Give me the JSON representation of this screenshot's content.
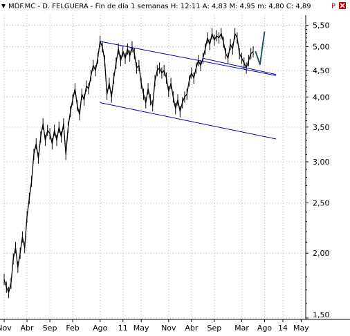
{
  "header": {
    "text": "MDF.MC - D. FELGUERA - Fin de día 1 semanas  H: 12:11  A: 4,83  M: 4,95  m: 4,80  C: 4,89",
    "marker_p": "P",
    "colors": {
      "marker": "#cc0000",
      "close_box": "#cc0000"
    }
  },
  "chart_data": {
    "type": "line",
    "title": "MDF.MC - D. FELGUERA - Fin de día 1 semanas",
    "scale": "log",
    "ylim": [
      1.5,
      5.75
    ],
    "yticks": [
      {
        "label": "5,50",
        "value": 5.5
      },
      {
        "label": "5,00",
        "value": 5.0
      },
      {
        "label": "4,50",
        "value": 4.5
      },
      {
        "label": "4,00",
        "value": 4.0
      },
      {
        "label": "3,50",
        "value": 3.5
      },
      {
        "label": "3,00",
        "value": 3.0
      },
      {
        "label": "2,50",
        "value": 2.5
      },
      {
        "label": "2,00",
        "value": 2.0
      },
      {
        "label": "1,50",
        "value": 1.5
      }
    ],
    "xticks": [
      {
        "label": "Nov",
        "t": 0
      },
      {
        "label": "Abr",
        "t": 5
      },
      {
        "label": "Sep",
        "t": 10
      },
      {
        "label": "Feb",
        "t": 15
      },
      {
        "label": "Ago",
        "t": 21
      },
      {
        "label": "11",
        "t": 26
      },
      {
        "label": "May",
        "t": 30
      },
      {
        "label": "Nov",
        "t": 36
      },
      {
        "label": "Abr",
        "t": 41
      },
      {
        "label": "Sep",
        "t": 46
      },
      {
        "label": "Mar",
        "t": 52
      },
      {
        "label": "Ago",
        "t": 57
      },
      {
        "label": "14",
        "t": 61
      },
      {
        "label": "May",
        "t": 65
      }
    ],
    "xlim": [
      0,
      66
    ],
    "grid": true,
    "series": [
      {
        "color": "#000000",
        "points": [
          [
            0,
            1.78
          ],
          [
            0.5,
            1.72
          ],
          [
            1,
            1.68
          ],
          [
            1.5,
            1.75
          ],
          [
            2,
            1.95
          ],
          [
            2.5,
            2.05
          ],
          [
            3,
            1.88
          ],
          [
            3.5,
            2.0
          ],
          [
            4,
            2.15
          ],
          [
            4.5,
            2.05
          ],
          [
            5,
            2.35
          ],
          [
            5.5,
            2.55
          ],
          [
            6,
            2.75
          ],
          [
            6.5,
            3.1
          ],
          [
            7,
            3.25
          ],
          [
            7.5,
            3.05
          ],
          [
            8,
            3.35
          ],
          [
            8.5,
            3.55
          ],
          [
            9,
            3.3
          ],
          [
            9.5,
            3.45
          ],
          [
            10,
            3.4
          ],
          [
            10.5,
            3.25
          ],
          [
            11,
            3.45
          ],
          [
            11.5,
            3.3
          ],
          [
            12,
            3.5
          ],
          [
            12.5,
            3.35
          ],
          [
            13,
            3.55
          ],
          [
            13.5,
            3.1
          ],
          [
            14,
            3.5
          ],
          [
            14.5,
            3.75
          ],
          [
            15,
            3.95
          ],
          [
            15.5,
            4.15
          ],
          [
            16,
            3.85
          ],
          [
            16.5,
            3.7
          ],
          [
            17,
            4.05
          ],
          [
            17.5,
            3.95
          ],
          [
            18,
            4.2
          ],
          [
            18.5,
            4.15
          ],
          [
            19,
            4.4
          ],
          [
            19.5,
            4.6
          ],
          [
            20,
            4.5
          ],
          [
            20.5,
            4.75
          ],
          [
            21,
            5.12
          ],
          [
            21.5,
            5.0
          ],
          [
            22,
            4.7
          ],
          [
            22.5,
            4.05
          ],
          [
            23,
            4.25
          ],
          [
            23.5,
            4.0
          ],
          [
            24,
            4.35
          ],
          [
            24.5,
            4.65
          ],
          [
            25,
            4.95
          ],
          [
            25.5,
            4.7
          ],
          [
            26,
            4.9
          ],
          [
            26.5,
            4.75
          ],
          [
            27,
            4.95
          ],
          [
            27.5,
            4.8
          ],
          [
            28,
            5.0
          ],
          [
            28.5,
            4.85
          ],
          [
            29,
            4.55
          ],
          [
            29.5,
            4.6
          ],
          [
            30,
            4.25
          ],
          [
            30.5,
            4.05
          ],
          [
            31,
            3.9
          ],
          [
            31.5,
            4.15
          ],
          [
            32,
            3.95
          ],
          [
            32.5,
            3.85
          ],
          [
            33,
            4.3
          ],
          [
            33.5,
            4.5
          ],
          [
            34,
            4.55
          ],
          [
            34.5,
            4.45
          ],
          [
            35,
            4.5
          ],
          [
            35.5,
            4.35
          ],
          [
            36,
            4.1
          ],
          [
            36.5,
            4.25
          ],
          [
            37,
            4.0
          ],
          [
            37.5,
            3.8
          ],
          [
            38,
            3.95
          ],
          [
            38.5,
            3.75
          ],
          [
            39,
            3.9
          ],
          [
            39.5,
            4.0
          ],
          [
            40,
            4.05
          ],
          [
            40.5,
            4.3
          ],
          [
            41,
            4.45
          ],
          [
            41.5,
            4.35
          ],
          [
            42,
            4.55
          ],
          [
            42.5,
            4.7
          ],
          [
            43,
            4.6
          ],
          [
            43.5,
            4.75
          ],
          [
            44,
            4.95
          ],
          [
            44.5,
            5.2
          ],
          [
            45,
            5.05
          ],
          [
            45.5,
            5.3
          ],
          [
            46,
            5.15
          ],
          [
            46.5,
            5.25
          ],
          [
            47,
            5.2
          ],
          [
            47.5,
            5.3
          ],
          [
            48,
            5.1
          ],
          [
            48.5,
            4.85
          ],
          [
            49,
            4.75
          ],
          [
            49.5,
            5.05
          ],
          [
            50,
            4.95
          ],
          [
            50.5,
            5.3
          ],
          [
            51,
            5.2
          ],
          [
            51.5,
            4.85
          ],
          [
            52,
            4.75
          ],
          [
            52.5,
            4.65
          ],
          [
            53,
            4.55
          ],
          [
            53.5,
            4.7
          ],
          [
            54,
            4.85
          ],
          [
            54.5,
            4.89
          ]
        ]
      },
      {
        "color": "#1a5a66",
        "points": [
          [
            55,
            4.9
          ],
          [
            56,
            4.62
          ],
          [
            57,
            5.35
          ]
        ]
      }
    ],
    "trendlines": [
      {
        "color": "#0000aa",
        "from": [
          21,
          5.12
        ],
        "to": [
          59.5,
          4.4
        ]
      },
      {
        "color": "#0000aa",
        "from": [
          21,
          3.9
        ],
        "to": [
          59.5,
          3.32
        ]
      },
      {
        "color": "#0000aa",
        "from": [
          43.5,
          4.75
        ],
        "to": [
          59.5,
          4.42
        ]
      }
    ]
  }
}
